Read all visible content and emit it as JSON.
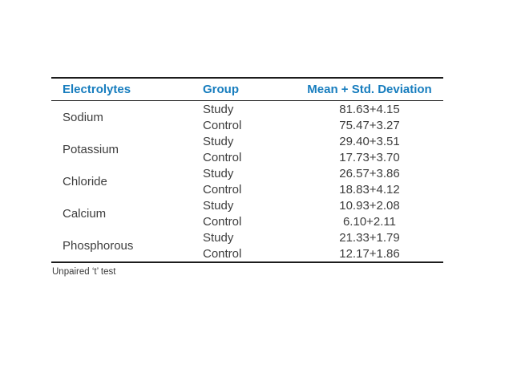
{
  "table": {
    "columns": {
      "electrolytes": "Electrolytes",
      "group": "Group",
      "mean": "Mean + Std. Deviation"
    },
    "rows": [
      {
        "electrolyte": "Sodium",
        "groups": [
          {
            "group": "Study",
            "value": "81.63+4.15"
          },
          {
            "group": "Control",
            "value": "75.47+3.27"
          }
        ]
      },
      {
        "electrolyte": "Potassium",
        "groups": [
          {
            "group": "Study",
            "value": "29.40+3.51"
          },
          {
            "group": "Control",
            "value": "17.73+3.70"
          }
        ]
      },
      {
        "electrolyte": "Chloride",
        "groups": [
          {
            "group": "Study",
            "value": "26.57+3.86"
          },
          {
            "group": "Control",
            "value": "18.83+4.12"
          }
        ]
      },
      {
        "electrolyte": "Calcium",
        "groups": [
          {
            "group": "Study",
            "value": "10.93+2.08"
          },
          {
            "group": "Control",
            "value": "6.10+2.11"
          }
        ]
      },
      {
        "electrolyte": "Phosphorous",
        "groups": [
          {
            "group": "Study",
            "value": "21.33+1.79"
          },
          {
            "group": "Control",
            "value": "12.17+1.86"
          }
        ]
      }
    ],
    "footnote": "Unpaired ‘t’ test"
  },
  "colors": {
    "header_text": "#177dbe",
    "body_text": "#3d3d3d",
    "rule": "#1c1c1c",
    "background": "#ffffff"
  },
  "chart_data": {
    "type": "table",
    "title": "",
    "columns": [
      "Electrolytes",
      "Group",
      "Mean + Std. Deviation"
    ],
    "cells": [
      [
        "Sodium",
        "Study",
        "81.63+4.15"
      ],
      [
        "Sodium",
        "Control",
        "75.47+3.27"
      ],
      [
        "Potassium",
        "Study",
        "29.40+3.51"
      ],
      [
        "Potassium",
        "Control",
        "17.73+3.70"
      ],
      [
        "Chloride",
        "Study",
        "26.57+3.86"
      ],
      [
        "Chloride",
        "Control",
        "18.83+4.12"
      ],
      [
        "Calcium",
        "Study",
        "10.93+2.08"
      ],
      [
        "Calcium",
        "Control",
        "6.10+2.11"
      ],
      [
        "Phosphorous",
        "Study",
        "21.33+1.79"
      ],
      [
        "Phosphorous",
        "Control",
        "12.17+1.86"
      ]
    ]
  }
}
